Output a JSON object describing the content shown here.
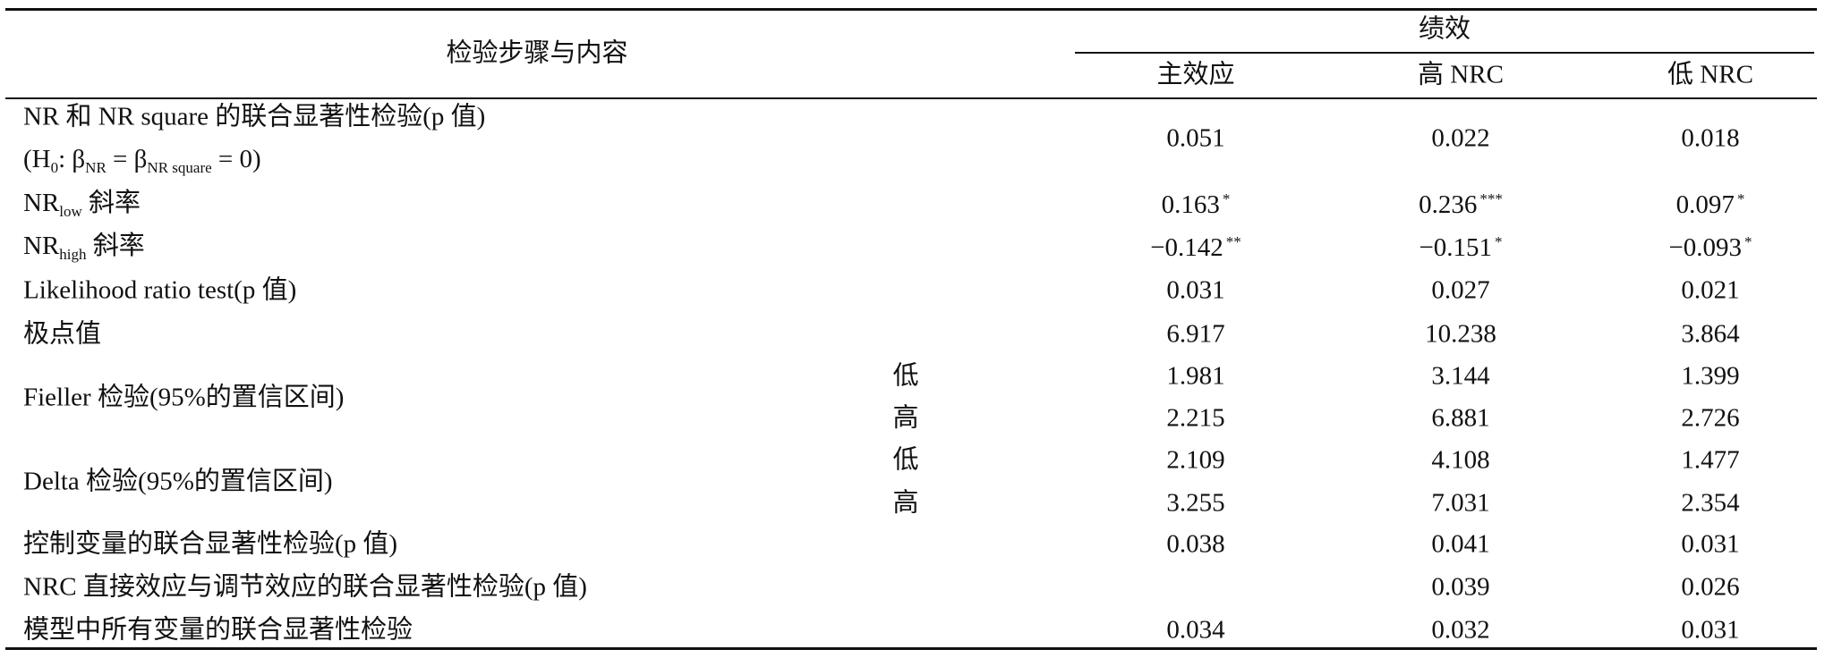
{
  "header": {
    "title": "检验步骤与内容",
    "group": "绩效",
    "columns": [
      "主效应",
      "高 NRC",
      "低 NRC"
    ]
  },
  "rows": [
    {
      "label": [
        [
          {
            "text": "NR 和 NR square 的联合显著性检验(p 值)"
          }
        ],
        [
          {
            "text": "(H"
          },
          {
            "sub": "0"
          },
          {
            "text": ": β"
          },
          {
            "sub": "NR"
          },
          {
            "text": " = β"
          },
          {
            "sub": "NR square"
          },
          {
            "text": " = 0)"
          }
        ]
      ],
      "values": [
        {
          "value": "0.051"
        },
        {
          "value": "0.022"
        },
        {
          "value": "0.018"
        }
      ]
    },
    {
      "label": [
        [
          {
            "text": "NR"
          },
          {
            "sub": "low"
          },
          {
            "text": " 斜率"
          }
        ]
      ],
      "values": [
        {
          "value": "0.163",
          "sig": "*"
        },
        {
          "value": "0.236",
          "sig": "***"
        },
        {
          "value": "0.097",
          "sig": "*"
        }
      ]
    },
    {
      "label": [
        [
          {
            "text": "NR"
          },
          {
            "sub": "high"
          },
          {
            "text": " 斜率"
          }
        ]
      ],
      "values": [
        {
          "value": "−0.142",
          "sig": "**"
        },
        {
          "value": "−0.151",
          "sig": "*"
        },
        {
          "value": "−0.093",
          "sig": "*"
        }
      ]
    },
    {
      "label": [
        [
          {
            "text": "Likelihood ratio test(p 值)"
          }
        ]
      ],
      "values": [
        {
          "value": "0.031"
        },
        {
          "value": "0.027"
        },
        {
          "value": "0.021"
        }
      ]
    },
    {
      "label": [
        [
          {
            "text": "极点值"
          }
        ]
      ],
      "values": [
        {
          "value": "6.917"
        },
        {
          "value": "10.238"
        },
        {
          "value": "3.864"
        }
      ]
    },
    {
      "label": [
        [
          {
            "text": "Fieller 检验(95%的置信区间)"
          }
        ]
      ],
      "bounds": [
        {
          "bound": "低",
          "values": [
            {
              "value": "1.981"
            },
            {
              "value": "3.144"
            },
            {
              "value": "1.399"
            }
          ]
        },
        {
          "bound": "高",
          "values": [
            {
              "value": "2.215"
            },
            {
              "value": "6.881"
            },
            {
              "value": "2.726"
            }
          ]
        }
      ]
    },
    {
      "label": [
        [
          {
            "text": "Delta 检验(95%的置信区间)"
          }
        ]
      ],
      "bounds": [
        {
          "bound": "低",
          "values": [
            {
              "value": "2.109"
            },
            {
              "value": "4.108"
            },
            {
              "value": "1.477"
            }
          ]
        },
        {
          "bound": "高",
          "values": [
            {
              "value": "3.255"
            },
            {
              "value": "7.031"
            },
            {
              "value": "2.354"
            }
          ]
        }
      ]
    },
    {
      "label": [
        [
          {
            "text": "控制变量的联合显著性检验(p 值)"
          }
        ]
      ],
      "values": [
        {
          "value": "0.038"
        },
        {
          "value": "0.041"
        },
        {
          "value": "0.031"
        }
      ]
    },
    {
      "label": [
        [
          {
            "text": "NRC 直接效应与调节效应的联合显著性检验(p 值)"
          }
        ]
      ],
      "values": [
        null,
        {
          "value": "0.039"
        },
        {
          "value": "0.026"
        }
      ]
    },
    {
      "label": [
        [
          {
            "text": "模型中所有变量的联合显著性检验"
          }
        ]
      ],
      "values": [
        {
          "value": "0.034"
        },
        {
          "value": "0.032"
        },
        {
          "value": "0.031"
        }
      ]
    }
  ]
}
